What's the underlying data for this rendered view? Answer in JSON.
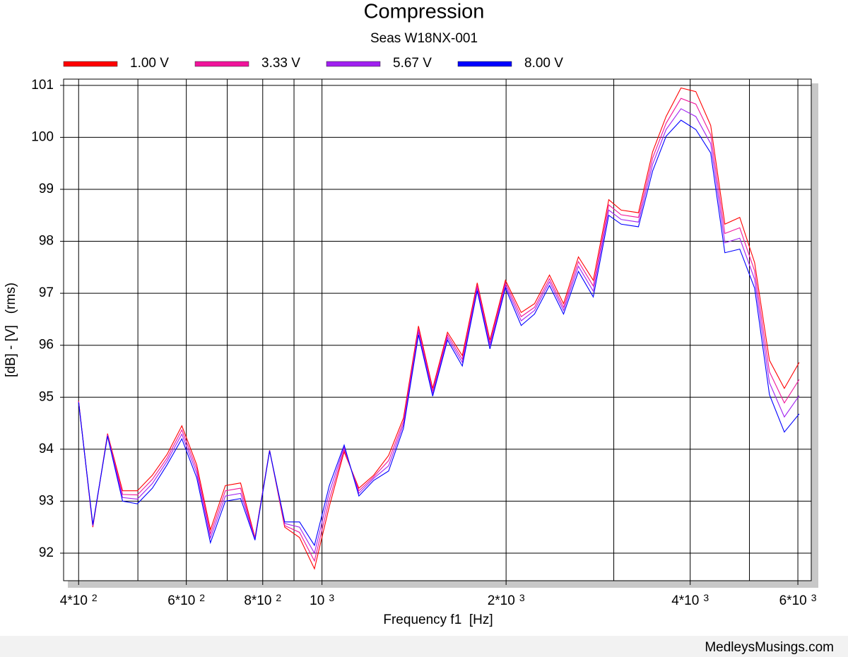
{
  "chart_data": {
    "type": "line",
    "title": "Compression",
    "subtitle": "Seas W18NX-001",
    "x_label": "Frequency f1  [Hz]",
    "y_label": "[dB] - [V]   (rms)",
    "footer": "MedleysMusings.com",
    "xscale": "log",
    "grid": true,
    "legend": "top",
    "xlim": [
      378,
      6310
    ],
    "ylim": [
      91.47,
      101.12
    ],
    "xticks": [
      {
        "value": 400,
        "label": "4*10",
        "exponent": "2"
      },
      {
        "value": 600,
        "label": "6*10",
        "exponent": "2"
      },
      {
        "value": 800,
        "label": "8*10",
        "exponent": "2"
      },
      {
        "value": 1000,
        "label": "10",
        "exponent": "3"
      },
      {
        "value": 2000,
        "label": "2*10",
        "exponent": "3"
      },
      {
        "value": 4000,
        "label": "4*10",
        "exponent": "3"
      },
      {
        "value": 6000,
        "label": "6*10",
        "exponent": "3"
      }
    ],
    "xminor": [
      500,
      700,
      900,
      3000,
      5000
    ],
    "yticks": [
      92,
      93,
      94,
      95,
      96,
      97,
      98,
      99,
      100,
      101
    ],
    "x": [
      400,
      422,
      446,
      472,
      499,
      528,
      558,
      590,
      624,
      657,
      695,
      736,
      777,
      821,
      869,
      919,
      972,
      1028,
      1087,
      1149,
      1215,
      1285,
      1359,
      1438,
      1517,
      1604,
      1696,
      1794,
      1882,
      1995,
      2117,
      2226,
      2355,
      2483,
      2626,
      2777,
      2944,
      3084,
      3292,
      3472,
      3653,
      3864,
      4086,
      4321,
      4558,
      4821,
      5098,
      5391,
      5702,
      6030
    ],
    "series": [
      {
        "name": "1.00 V",
        "color": "#ff0000",
        "values": [
          94.93,
          92.5,
          94.3,
          93.2,
          93.2,
          93.5,
          93.9,
          94.45,
          93.7,
          92.45,
          93.3,
          93.35,
          92.3,
          93.98,
          92.5,
          92.3,
          91.7,
          92.9,
          93.95,
          93.25,
          93.5,
          93.88,
          94.6,
          96.37,
          95.17,
          96.25,
          95.8,
          97.2,
          96.1,
          97.25,
          96.63,
          96.8,
          97.35,
          96.8,
          97.7,
          97.25,
          98.8,
          98.6,
          98.55,
          99.72,
          100.4,
          100.95,
          100.88,
          100.23,
          98.33,
          98.46,
          97.59,
          95.71,
          95.17,
          95.67
        ]
      },
      {
        "name": "3.33 V",
        "color": "#f0149b",
        "values": [
          94.92,
          92.52,
          94.28,
          93.13,
          93.12,
          93.42,
          93.83,
          94.37,
          93.62,
          92.37,
          93.2,
          93.25,
          92.28,
          93.98,
          92.53,
          92.4,
          91.85,
          93.03,
          93.99,
          93.2,
          93.47,
          93.78,
          94.53,
          96.31,
          95.12,
          96.2,
          95.73,
          97.15,
          96.04,
          97.2,
          96.55,
          96.73,
          97.28,
          96.73,
          97.61,
          97.14,
          98.7,
          98.51,
          98.46,
          99.6,
          100.27,
          100.75,
          100.64,
          100.05,
          98.15,
          98.26,
          97.43,
          95.49,
          94.89,
          95.34
        ]
      },
      {
        "name": "5.67 V",
        "color": "#a020f0",
        "values": [
          94.91,
          92.53,
          94.27,
          93.07,
          93.04,
          93.34,
          93.77,
          94.29,
          93.54,
          92.29,
          93.1,
          93.15,
          92.27,
          93.97,
          92.57,
          92.5,
          92.0,
          93.17,
          94.04,
          93.15,
          93.44,
          93.68,
          94.47,
          96.26,
          95.07,
          96.15,
          95.67,
          97.1,
          95.99,
          97.15,
          96.47,
          96.67,
          97.22,
          96.67,
          97.52,
          97.04,
          98.6,
          98.42,
          98.37,
          99.48,
          100.15,
          100.55,
          100.4,
          99.88,
          97.97,
          98.06,
          97.27,
          95.28,
          94.62,
          95.03
        ]
      },
      {
        "name": "8.00 V",
        "color": "#0000ff",
        "values": [
          94.9,
          92.55,
          94.25,
          93.0,
          92.95,
          93.25,
          93.7,
          94.2,
          93.45,
          92.2,
          93.0,
          93.05,
          92.25,
          93.97,
          92.6,
          92.6,
          92.15,
          93.3,
          94.08,
          93.1,
          93.4,
          93.58,
          94.4,
          96.2,
          95.02,
          96.1,
          95.6,
          97.05,
          95.93,
          97.1,
          96.38,
          96.6,
          97.15,
          96.6,
          97.42,
          96.93,
          98.5,
          98.33,
          98.28,
          99.35,
          100.02,
          100.33,
          100.15,
          99.7,
          97.78,
          97.85,
          97.1,
          95.05,
          94.33,
          94.68
        ]
      }
    ]
  }
}
